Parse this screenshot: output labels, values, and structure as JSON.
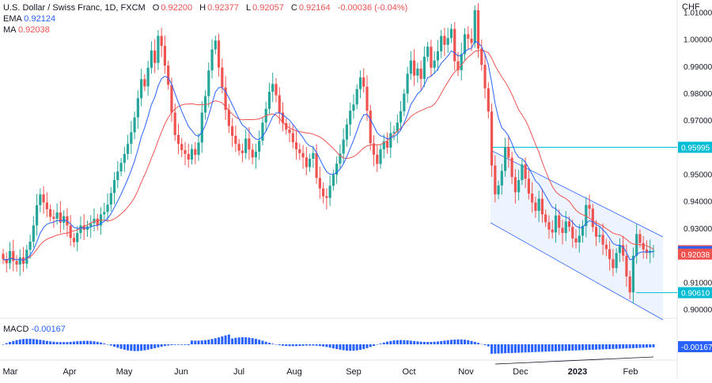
{
  "legend": {
    "title": "U.S. Dollar / Swiss Franc, 1D, FXCM",
    "o_label": "O",
    "o_val": "0.92200",
    "h_label": "H",
    "h_val": "0.92377",
    "l_label": "L",
    "l_val": "0.92057",
    "c_label": "C",
    "c_val": "0.92164",
    "change": "-0.00036 (-0.04%)",
    "ema_label": "EMA",
    "ema_val": "0.92124",
    "ma_label": "MA",
    "ma_val": "0.92038"
  },
  "currency": "CHF",
  "macd": {
    "label": "MACD",
    "value": "-0.00167"
  },
  "colors": {
    "up": "#26a69a",
    "down": "#ef5350",
    "ema": "#2962ff",
    "ma": "#ef5350",
    "channel": "#2962ff",
    "level": "#00bcd4",
    "macd": "#2962ff",
    "grid": "#f0f3fa",
    "axis_text": "#131722"
  },
  "chart_data": {
    "type": "candlestick",
    "symbol": "USDCHF",
    "timeframe": "1D",
    "y_ticks": [
      "1.01000",
      "1.00000",
      "0.99000",
      "0.98000",
      "0.97000",
      "0.96000",
      "0.95000",
      "0.94000",
      "0.93000",
      "0.92000",
      "0.91000",
      "0.90000"
    ],
    "y_range": [
      0.8975,
      1.0145
    ],
    "x_ticks": [
      "Mar",
      "Apr",
      "May",
      "Jun",
      "Jul",
      "Aug",
      "Sep",
      "Oct",
      "Nov",
      "Dec",
      "2023",
      "Feb"
    ],
    "price_tags": [
      {
        "label": "0.95995",
        "value": 0.95995,
        "color": "#00bcd4"
      },
      {
        "label": "0.92164",
        "value": 0.92164,
        "color": "#ef5350"
      },
      {
        "label": "0.92124",
        "value": 0.92124,
        "color": "#2962ff"
      },
      {
        "label": "0.92038",
        "value": 0.92038,
        "color": "#ef5350"
      },
      {
        "label": "0.90610",
        "value": 0.9061,
        "color": "#00bcd4"
      }
    ],
    "horizontal_levels": [
      0.95995,
      0.9061
    ],
    "closes": [
      0.9185,
      0.917,
      0.9215,
      0.9178,
      0.9165,
      0.9192,
      0.9168,
      0.922,
      0.925,
      0.931,
      0.9385,
      0.9425,
      0.9395,
      0.937,
      0.9342,
      0.9335,
      0.9358,
      0.932,
      0.9344,
      0.931,
      0.9264,
      0.9248,
      0.9282,
      0.931,
      0.9294,
      0.9306,
      0.9318,
      0.9335,
      0.931,
      0.9351,
      0.936,
      0.9387,
      0.943,
      0.9478,
      0.951,
      0.9542,
      0.9575,
      0.9612,
      0.9655,
      0.971,
      0.9781,
      0.9852,
      0.9825,
      0.9894,
      0.9958,
      0.9912,
      1.0012,
      0.9975,
      0.9902,
      0.9831,
      0.9728,
      0.9645,
      0.9612,
      0.9589,
      0.9575,
      0.9554,
      0.9593,
      0.9571,
      0.9617,
      0.9728,
      0.9789,
      0.9884,
      0.9962,
      0.9995,
      0.9895,
      0.9821,
      0.9738,
      0.9678,
      0.9642,
      0.9612,
      0.9587,
      0.9578,
      0.9632,
      0.9591,
      0.9562,
      0.9583,
      0.9624,
      0.9691,
      0.9742,
      0.9805,
      0.9834,
      0.9792,
      0.9728,
      0.9689,
      0.9665,
      0.9652,
      0.9618,
      0.9592,
      0.9578,
      0.9562,
      0.9526,
      0.9557,
      0.9578,
      0.9486,
      0.9447,
      0.9418,
      0.9412,
      0.9457,
      0.9498,
      0.9539,
      0.9576,
      0.9628,
      0.9684,
      0.9735,
      0.9758,
      0.9815,
      0.9858,
      0.9824,
      0.9735,
      0.9614,
      0.9572,
      0.9538,
      0.9592,
      0.9621,
      0.9598,
      0.9652,
      0.9657,
      0.9691,
      0.9733,
      0.9798,
      0.9872,
      0.9921,
      0.9865,
      0.9891,
      0.9853,
      0.9935,
      0.9972,
      0.9894,
      0.9921,
      0.9955,
      1.0012,
      0.9979,
      1.0004,
      1.0038,
      0.9918,
      0.9885,
      0.9945,
      1.0018,
      1.0002,
      0.9986,
      1.0107,
      0.9965,
      0.9905,
      0.9818,
      0.9732,
      0.9532,
      0.9425,
      0.9458,
      0.9512,
      0.9601,
      0.9561,
      0.9489,
      0.9433,
      0.9478,
      0.9536,
      0.9483,
      0.9428,
      0.9395,
      0.9364,
      0.9409,
      0.9351,
      0.9322,
      0.9295,
      0.9284,
      0.9347,
      0.9301,
      0.9282,
      0.9325,
      0.9305,
      0.9262,
      0.9247,
      0.9272,
      0.9308,
      0.9386,
      0.9372,
      0.9304,
      0.9268,
      0.9275,
      0.9239,
      0.9222,
      0.9185,
      0.9152,
      0.9208,
      0.9237,
      0.9198,
      0.9121,
      0.9062,
      0.9198,
      0.9278,
      0.9245,
      0.9221,
      0.9208,
      0.9216,
      0.9216
    ]
  }
}
